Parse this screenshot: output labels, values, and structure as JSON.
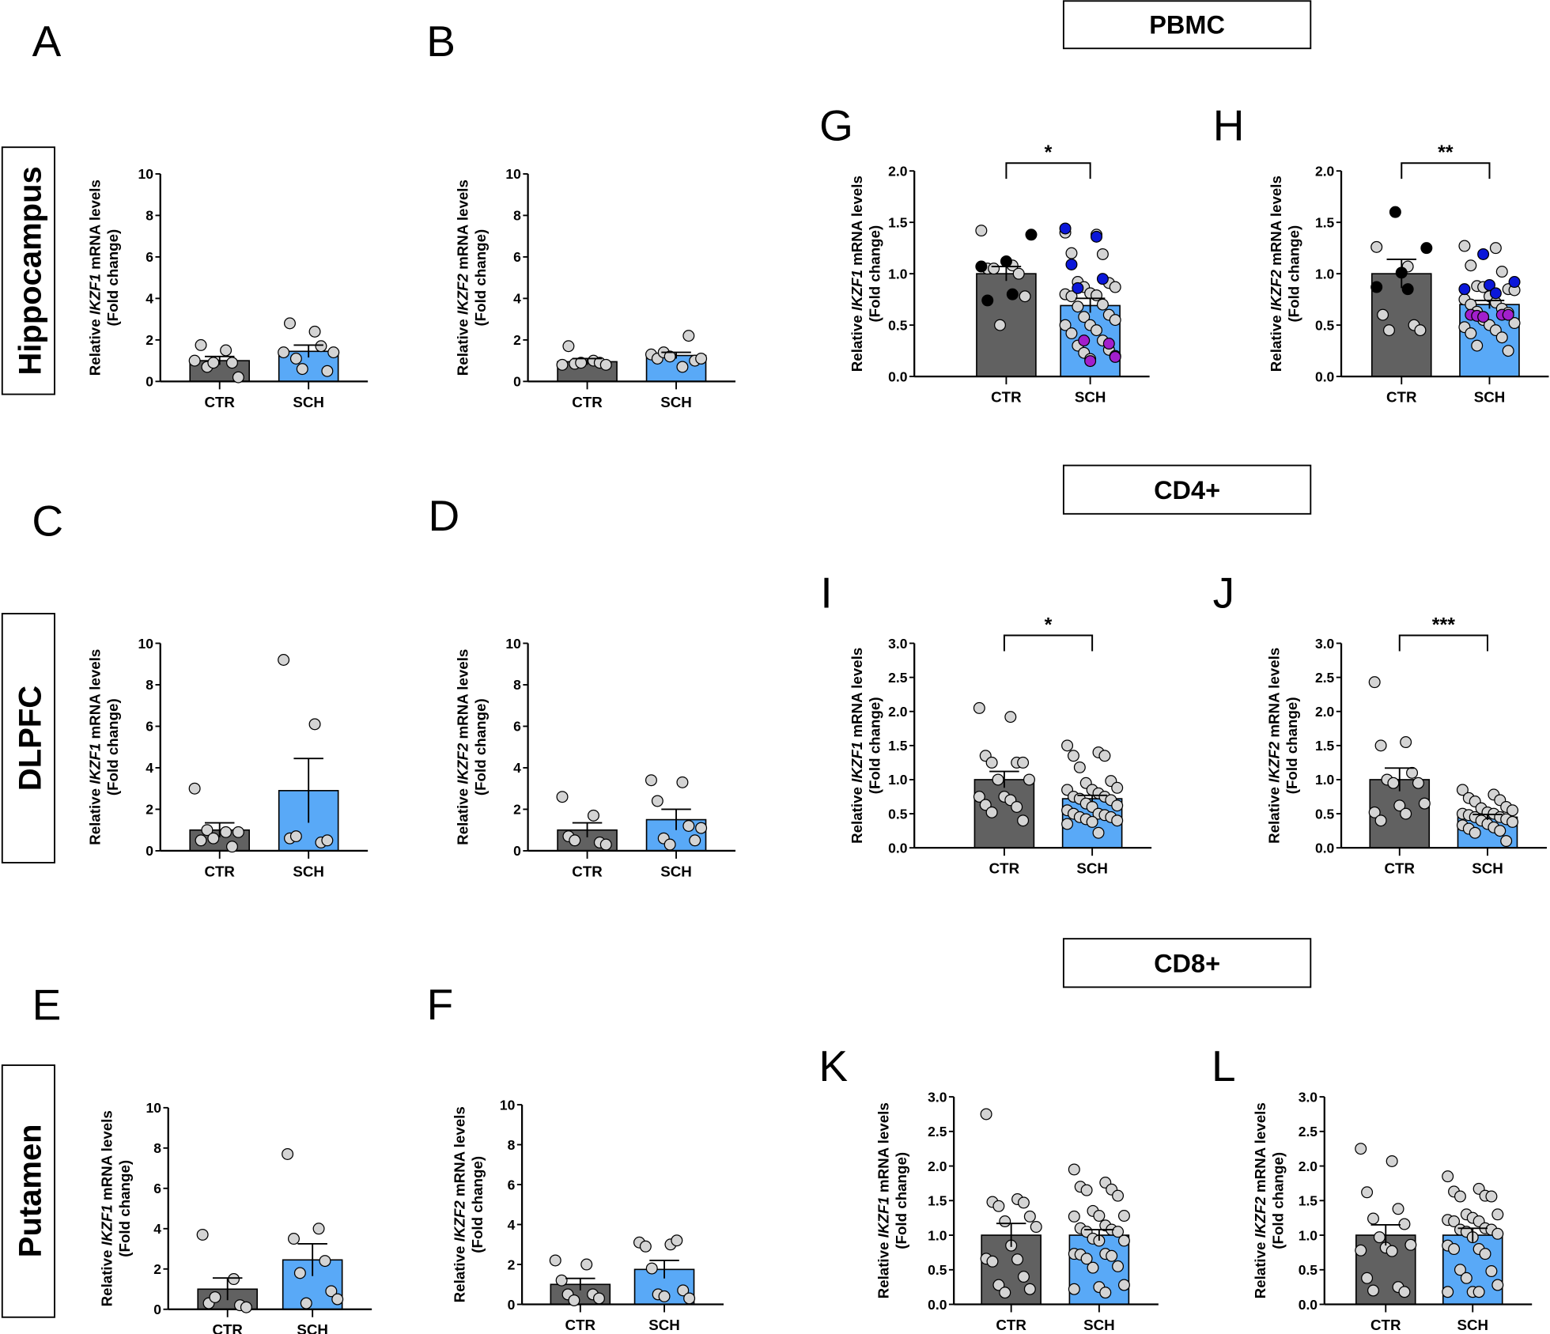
{
  "colors": {
    "ctr_bar": "#616161",
    "sch_bar": "#59a9f7",
    "point_gray": "#d4d4d4",
    "point_black": "#000000",
    "point_blue": "#0b17d9",
    "point_purple": "#a21fcc"
  },
  "section_boxes": {
    "pbmc": "PBMC",
    "cd4": "CD4+",
    "cd8": "CD8+"
  },
  "regions": {
    "hippocampus": "Hippocampus",
    "dlpfc": "DLPFC",
    "putamen": "Putamen"
  },
  "chart_data": [
    {
      "id": "A",
      "type": "bar",
      "letter": "A",
      "region": "Hippocampus",
      "ylabel": {
        "prefix": "Relative ",
        "gene": "IKZF1",
        "suffix": " mRNA levels",
        "line2": "(Fold change)"
      },
      "ylim": [
        0,
        10
      ],
      "yticks": [
        "0",
        "2",
        "4",
        "6",
        "8",
        "10"
      ],
      "significance": "",
      "groups": [
        {
          "label": "CTR",
          "mean": 1.0,
          "sem": 0.2,
          "points": [
            1.0,
            1.5,
            1.75,
            0.9,
            0.7,
            0.2,
            0.9
          ]
        },
        {
          "label": "SCH",
          "mean": 1.45,
          "sem": 0.3,
          "points": [
            1.4,
            2.4,
            2.8,
            1.7,
            1.1,
            0.5,
            0.6,
            1.4
          ]
        }
      ]
    },
    {
      "id": "B",
      "type": "bar",
      "letter": "B",
      "region": "Hippocampus",
      "ylabel": {
        "prefix": "Relative ",
        "gene": "IKZF2",
        "suffix": " mRNA levels",
        "line2": "(Fold change)"
      },
      "ylim": [
        0,
        10
      ],
      "yticks": [
        "0",
        "2",
        "4",
        "6",
        "8",
        "10"
      ],
      "significance": "",
      "groups": [
        {
          "label": "CTR",
          "mean": 0.95,
          "sem": 0.15,
          "points": [
            0.8,
            1.0,
            1.7,
            0.9,
            0.85,
            0.8,
            0.9
          ]
        },
        {
          "label": "SCH",
          "mean": 1.25,
          "sem": 0.15,
          "points": [
            1.3,
            0.7,
            1.1,
            2.2,
            1.4,
            1.0,
            1.2,
            1.1
          ]
        }
      ]
    },
    {
      "id": "C",
      "type": "bar",
      "letter": "C",
      "region": "DLPFC",
      "ylabel": {
        "prefix": "Relative ",
        "gene": "IKZF1",
        "suffix": " mRNA levels",
        "line2": "(Fold change)"
      },
      "ylim": [
        0,
        10
      ],
      "yticks": [
        "0",
        "2",
        "4",
        "6",
        "8",
        "10"
      ],
      "significance": "",
      "groups": [
        {
          "label": "CTR",
          "mean": 1.0,
          "sem": 0.35,
          "points": [
            3.0,
            0.9,
            0.5,
            0.2,
            1.0,
            0.9,
            0.6
          ]
        },
        {
          "label": "SCH",
          "mean": 2.9,
          "sem": 1.55,
          "points": [
            9.2,
            6.1,
            0.6,
            0.4,
            0.7,
            0.5
          ]
        }
      ]
    },
    {
      "id": "D",
      "type": "bar",
      "letter": "D",
      "region": "DLPFC",
      "ylabel": {
        "prefix": "Relative ",
        "gene": "IKZF2",
        "suffix": " mRNA levels",
        "line2": "(Fold change)"
      },
      "ylim": [
        0,
        10
      ],
      "yticks": [
        "0",
        "2",
        "4",
        "6",
        "8",
        "10"
      ],
      "significance": "",
      "groups": [
        {
          "label": "CTR",
          "mean": 1.0,
          "sem": 0.35,
          "points": [
            2.6,
            1.7,
            0.7,
            0.4,
            0.5,
            0.3
          ]
        },
        {
          "label": "SCH",
          "mean": 1.5,
          "sem": 0.5,
          "points": [
            3.4,
            3.3,
            2.4,
            1.2,
            0.6,
            0.5,
            0.3,
            1.1
          ]
        }
      ]
    },
    {
      "id": "E",
      "type": "bar",
      "letter": "E",
      "region": "Putamen",
      "ylabel": {
        "prefix": "Relative ",
        "gene": "IKZF1",
        "suffix": " mRNA levels",
        "line2": "(Fold change)"
      },
      "ylim": [
        0,
        10
      ],
      "yticks": [
        "0",
        "2",
        "4",
        "6",
        "8",
        "10"
      ],
      "significance": "",
      "groups": [
        {
          "label": "CTR",
          "mean": 1.0,
          "sem": 0.55,
          "points": [
            3.7,
            1.5,
            0.3,
            0.2,
            0.6,
            0.1
          ]
        },
        {
          "label": "SCH",
          "mean": 2.45,
          "sem": 0.8,
          "points": [
            7.7,
            4.0,
            3.5,
            2.4,
            1.8,
            0.9,
            0.3,
            0.5
          ]
        }
      ]
    },
    {
      "id": "F",
      "type": "bar",
      "letter": "F",
      "region": "Putamen",
      "ylabel": {
        "prefix": "Relative ",
        "gene": "IKZF2",
        "suffix": " mRNA levels",
        "line2": "(Fold change)"
      },
      "ylim": [
        0,
        10
      ],
      "yticks": [
        "0",
        "2",
        "4",
        "6",
        "8",
        "10"
      ],
      "significance": "",
      "groups": [
        {
          "label": "CTR",
          "mean": 1.0,
          "sem": 0.3,
          "points": [
            2.2,
            2.0,
            1.2,
            0.5,
            0.5,
            0.3,
            0.2
          ]
        },
        {
          "label": "SCH",
          "mean": 1.75,
          "sem": 0.45,
          "points": [
            3.1,
            3.0,
            2.9,
            3.2,
            1.8,
            0.7,
            0.5,
            0.3,
            0.4
          ]
        }
      ]
    },
    {
      "id": "G",
      "type": "bar",
      "letter": "G",
      "section": "PBMC",
      "ylabel": {
        "prefix": "Relative ",
        "gene": "IKZF1",
        "suffix": " mRNA levels",
        "line2": "(Fold change)"
      },
      "ylim": [
        0,
        2
      ],
      "yticks": [
        "0.0",
        "0.5",
        "1.0",
        "1.5",
        "2.0"
      ],
      "significance": "*",
      "groups": [
        {
          "label": "CTR",
          "mean": 1.0,
          "sem": 0.07,
          "points": [
            1.42,
            1.08,
            1.05,
            1.0,
            1.05,
            0.78,
            0.5
          ],
          "special_points": [
            {
              "v": 1.38,
              "c": "black"
            },
            {
              "v": 1.12,
              "c": "black"
            },
            {
              "v": 1.07,
              "c": "black"
            },
            {
              "v": 0.8,
              "c": "black"
            },
            {
              "v": 0.74,
              "c": "black"
            }
          ]
        },
        {
          "label": "SCH",
          "mean": 0.69,
          "sem": 0.07,
          "points": [
            1.4,
            1.38,
            1.2,
            1.19,
            0.92,
            0.91,
            0.87,
            0.87,
            0.81,
            0.8,
            0.79,
            0.78,
            0.7,
            0.68,
            0.6,
            0.58,
            0.55,
            0.5,
            0.5,
            0.45,
            0.42,
            0.35,
            0.3,
            0.26,
            0.23,
            0.2,
            0.17
          ],
          "special_points": [
            {
              "v": 1.44,
              "c": "blue"
            },
            {
              "v": 1.36,
              "c": "blue"
            },
            {
              "v": 1.09,
              "c": "blue"
            },
            {
              "v": 0.95,
              "c": "blue"
            },
            {
              "v": 0.86,
              "c": "blue"
            },
            {
              "v": 0.32,
              "c": "purple"
            },
            {
              "v": 0.35,
              "c": "purple"
            },
            {
              "v": 0.19,
              "c": "purple"
            },
            {
              "v": 0.15,
              "c": "purple"
            }
          ]
        }
      ]
    },
    {
      "id": "H",
      "type": "bar",
      "letter": "H",
      "section": "PBMC",
      "ylabel": {
        "prefix": "Relative ",
        "gene": "IKZF2",
        "suffix": " mRNA levels",
        "line2": "(Fold change)"
      },
      "ylim": [
        0,
        2
      ],
      "yticks": [
        "0.0",
        "0.5",
        "1.0",
        "1.5",
        "2.0"
      ],
      "significance": "**",
      "groups": [
        {
          "label": "CTR",
          "mean": 1.0,
          "sem": 0.14,
          "points": [
            1.26,
            1.07,
            0.6,
            0.5,
            0.45,
            0.45
          ],
          "special_points": [
            {
              "v": 1.6,
              "c": "black"
            },
            {
              "v": 1.25,
              "c": "black"
            },
            {
              "v": 1.01,
              "c": "black"
            },
            {
              "v": 0.87,
              "c": "black"
            },
            {
              "v": 0.85,
              "c": "black"
            }
          ]
        },
        {
          "label": "SCH",
          "mean": 0.7,
          "sem": 0.04,
          "points": [
            1.27,
            1.25,
            1.08,
            1.02,
            0.88,
            0.85,
            0.87,
            0.84,
            0.78,
            0.75,
            0.72,
            0.7,
            0.66,
            0.63,
            0.62,
            0.55,
            0.52,
            0.5,
            0.48,
            0.45,
            0.42,
            0.38,
            0.3,
            0.25
          ],
          "special_points": [
            {
              "v": 1.19,
              "c": "blue"
            },
            {
              "v": 0.92,
              "c": "blue"
            },
            {
              "v": 0.89,
              "c": "blue"
            },
            {
              "v": 0.85,
              "c": "blue"
            },
            {
              "v": 0.81,
              "c": "blue"
            },
            {
              "v": 0.6,
              "c": "purple"
            },
            {
              "v": 0.6,
              "c": "purple"
            },
            {
              "v": 0.59,
              "c": "purple"
            },
            {
              "v": 0.6,
              "c": "purple"
            },
            {
              "v": 0.58,
              "c": "purple"
            }
          ]
        }
      ]
    },
    {
      "id": "I",
      "type": "bar",
      "letter": "I",
      "section": "CD4+",
      "ylabel": {
        "prefix": "Relative ",
        "gene": "IKZF1",
        "suffix": " mRNA levels",
        "line2": "(Fold change)"
      },
      "ylim": [
        0,
        3
      ],
      "yticks": [
        "0.0",
        "0.5",
        "1.0",
        "1.5",
        "2.0",
        "2.5",
        "3.0"
      ],
      "significance": "*",
      "groups": [
        {
          "label": "CTR",
          "mean": 1.0,
          "sem": 0.12,
          "points": [
            2.05,
            1.92,
            1.35,
            1.25,
            1.25,
            1.25,
            1.0,
            1.0,
            0.75,
            0.75,
            0.7,
            0.63,
            0.6,
            0.52,
            0.4
          ]
        },
        {
          "label": "SCH",
          "mean": 0.72,
          "sem": 0.05,
          "points": [
            1.5,
            1.4,
            1.35,
            1.35,
            1.18,
            0.98,
            0.95,
            0.88,
            0.85,
            0.85,
            0.8,
            0.75,
            0.75,
            0.72,
            0.7,
            0.65,
            0.62,
            0.6,
            0.55,
            0.5,
            0.5,
            0.48,
            0.45,
            0.45,
            0.42,
            0.4,
            0.38,
            0.35,
            0.22
          ]
        }
      ]
    },
    {
      "id": "J",
      "type": "bar",
      "letter": "J",
      "section": "CD4+",
      "ylabel": {
        "prefix": "Relative ",
        "gene": "IKZF2",
        "suffix": " mRNA levels",
        "line2": "(Fold change)"
      },
      "ylim": [
        0,
        3
      ],
      "yticks": [
        "0.0",
        "0.5",
        "1.0",
        "1.5",
        "2.0",
        "2.5",
        "3.0"
      ],
      "significance": "***",
      "groups": [
        {
          "label": "CTR",
          "mean": 1.0,
          "sem": 0.17,
          "points": [
            2.43,
            1.55,
            1.5,
            1.1,
            1.0,
            0.95,
            0.95,
            0.65,
            0.62,
            0.52,
            0.5,
            0.4
          ]
        },
        {
          "label": "SCH",
          "mean": 0.45,
          "sem": 0.04,
          "points": [
            0.85,
            0.78,
            0.73,
            0.7,
            0.68,
            0.6,
            0.58,
            0.55,
            0.52,
            0.5,
            0.5,
            0.48,
            0.45,
            0.45,
            0.42,
            0.4,
            0.38,
            0.35,
            0.33,
            0.3,
            0.28,
            0.25,
            0.22,
            0.1
          ]
        }
      ]
    },
    {
      "id": "K",
      "type": "bar",
      "letter": "K",
      "section": "CD8+",
      "ylabel": {
        "prefix": "Relative ",
        "gene": "IKZF1",
        "suffix": " mRNA levels",
        "line2": "(Fold change)"
      },
      "ylim": [
        0,
        3
      ],
      "yticks": [
        "0.0",
        "0.5",
        "1.0",
        "1.5",
        "2.0",
        "2.5",
        "3.0"
      ],
      "significance": "",
      "groups": [
        {
          "label": "CTR",
          "mean": 1.0,
          "sem": 0.17,
          "points": [
            2.75,
            1.52,
            1.48,
            1.47,
            1.42,
            1.27,
            1.2,
            1.12,
            0.85,
            0.66,
            0.65,
            0.62,
            0.4,
            0.28,
            0.22,
            0.17
          ]
        },
        {
          "label": "SCH",
          "mean": 1.0,
          "sem": 0.08,
          "points": [
            1.95,
            1.76,
            1.7,
            1.66,
            1.65,
            1.57,
            1.35,
            1.28,
            1.28,
            1.27,
            1.14,
            1.1,
            1.08,
            1.05,
            1.05,
            0.95,
            0.92,
            0.92,
            0.73,
            0.73,
            0.72,
            0.7,
            0.66,
            0.55,
            0.53,
            0.28,
            0.25,
            0.22,
            0.17
          ]
        }
      ]
    },
    {
      "id": "L",
      "type": "bar",
      "letter": "L",
      "section": "CD8+",
      "ylabel": {
        "prefix": "Relative ",
        "gene": "IKZF2",
        "suffix": " mRNA levels",
        "line2": "(Fold change)"
      },
      "ylim": [
        0,
        3
      ],
      "yticks": [
        "0.0",
        "0.5",
        "1.0",
        "1.5",
        "2.0",
        "2.5",
        "3.0"
      ],
      "significance": "",
      "groups": [
        {
          "label": "CTR",
          "mean": 1.0,
          "sem": 0.15,
          "points": [
            2.25,
            2.07,
            1.62,
            1.38,
            1.24,
            1.16,
            0.97,
            0.86,
            0.82,
            0.78,
            0.77,
            0.38,
            0.25,
            0.2,
            0.18
          ]
        },
        {
          "label": "SCH",
          "mean": 1.0,
          "sem": 0.1,
          "points": [
            1.85,
            1.67,
            1.63,
            1.57,
            1.56,
            1.56,
            1.3,
            1.3,
            1.25,
            1.22,
            1.2,
            1.2,
            1.1,
            1.08,
            1.08,
            1.05,
            1.02,
            0.97,
            0.85,
            0.8,
            0.8,
            0.73,
            0.5,
            0.48,
            0.38,
            0.28,
            0.18,
            0.18,
            0.18
          ]
        }
      ]
    }
  ]
}
